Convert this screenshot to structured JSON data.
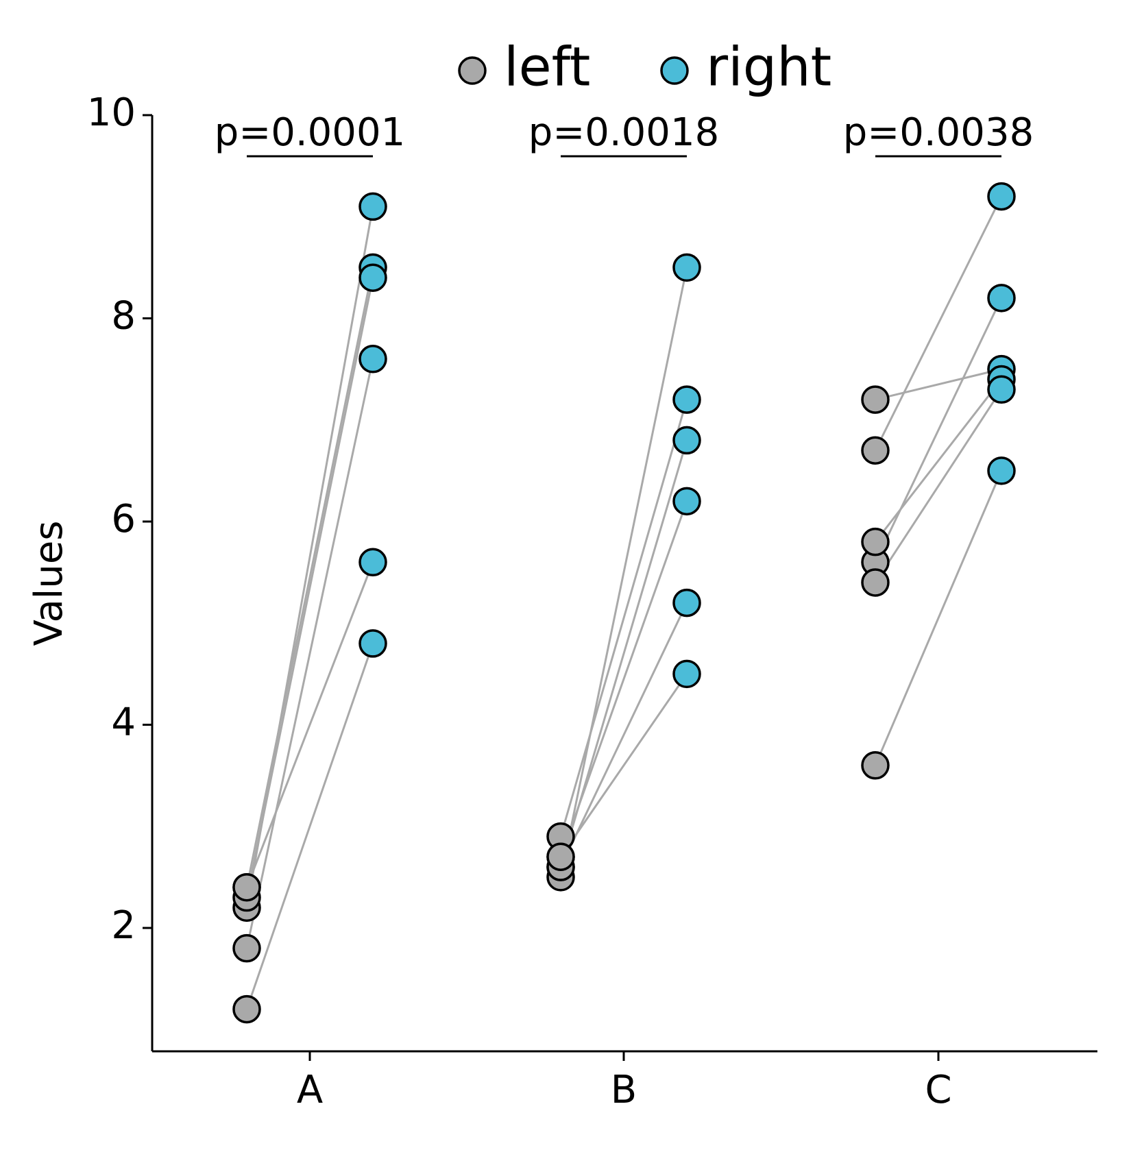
{
  "chart_data": {
    "type": "scatter",
    "subtype": "paired-dot-plot",
    "ylabel": "Values",
    "xlabel": "",
    "ylim": [
      0.9,
      10
    ],
    "yticks": [
      2,
      4,
      6,
      8,
      10
    ],
    "grid": false,
    "legend": {
      "placement": "top-center",
      "entries": [
        {
          "name": "left",
          "color": "#a9a9a9"
        },
        {
          "name": "right",
          "color": "#4bbcd8"
        }
      ]
    },
    "categories": [
      "A",
      "B",
      "C"
    ],
    "groups": [
      {
        "category": "A",
        "p_value_label": "p=0.0001",
        "pairs": [
          {
            "left": 2.2,
            "right": 9.1
          },
          {
            "left": 2.4,
            "right": 8.5
          },
          {
            "left": 2.3,
            "right": 8.4
          },
          {
            "left": 1.8,
            "right": 7.6
          },
          {
            "left": 2.4,
            "right": 5.6
          },
          {
            "left": 1.2,
            "right": 4.8
          }
        ]
      },
      {
        "category": "B",
        "p_value_label": "p=0.0018",
        "pairs": [
          {
            "left": 2.5,
            "right": 8.5
          },
          {
            "left": 2.9,
            "right": 7.2
          },
          {
            "left": 2.6,
            "right": 6.8
          },
          {
            "left": 2.7,
            "right": 6.2
          },
          {
            "left": 2.6,
            "right": 5.2
          },
          {
            "left": 2.7,
            "right": 4.5
          }
        ]
      },
      {
        "category": "C",
        "p_value_label": "p=0.0038",
        "pairs": [
          {
            "left": 6.7,
            "right": 9.2
          },
          {
            "left": 5.6,
            "right": 8.2
          },
          {
            "left": 7.2,
            "right": 7.5
          },
          {
            "left": 5.8,
            "right": 7.4
          },
          {
            "left": 5.4,
            "right": 7.3
          },
          {
            "left": 3.6,
            "right": 6.5
          }
        ]
      }
    ],
    "colors": {
      "left": "#a9a9a9",
      "right": "#4bbcd8",
      "connector": "#a9a9a9",
      "marker_edge": "#000000"
    }
  }
}
